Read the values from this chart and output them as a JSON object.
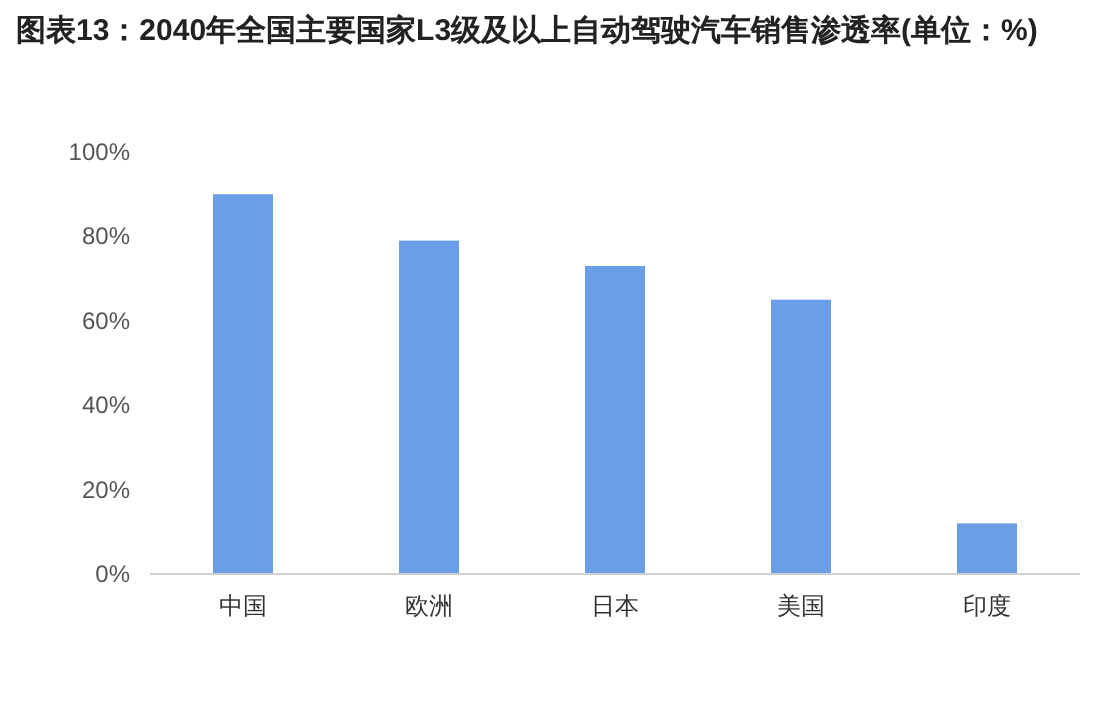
{
  "chart_data": {
    "type": "bar",
    "title": "图表13：2040年全国主要国家L3级及以上自动驾驶汽车销售渗透率(单位：%)",
    "categories": [
      "中国",
      "欧洲",
      "日本",
      "美国",
      "印度"
    ],
    "values": [
      90,
      79,
      73,
      65,
      12
    ],
    "color": "#6a9fe8",
    "ylim": [
      0,
      100
    ],
    "yticks": [
      {
        "value": 0,
        "label": "0%"
      },
      {
        "value": 20,
        "label": "20%"
      },
      {
        "value": 40,
        "label": "40%"
      },
      {
        "value": 60,
        "label": "60%"
      },
      {
        "value": 80,
        "label": "80%"
      },
      {
        "value": 100,
        "label": "100%"
      }
    ],
    "grid": false
  }
}
